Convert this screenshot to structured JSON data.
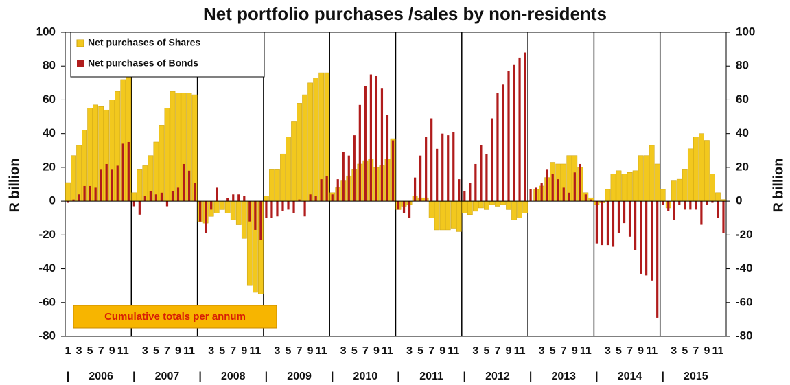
{
  "chart_data": {
    "type": "bar",
    "title": "Net portfolio purchases /sales by non-residents",
    "y_label": "R billion",
    "y2_label": "R billion",
    "annotation": "Cumulative totals per annum",
    "year_separator": "|",
    "years": [
      "2006",
      "2007",
      "2008",
      "2009",
      "2010",
      "2011",
      "2012",
      "2013",
      "2014",
      "2015"
    ],
    "categories": [
      "1",
      null,
      "3",
      null,
      "5",
      null,
      "7",
      null,
      "9",
      null,
      "11",
      null,
      null,
      null,
      "3",
      null,
      "5",
      null,
      "7",
      null,
      "9",
      null,
      "11",
      null,
      null,
      null,
      "3",
      null,
      "5",
      null,
      "7",
      null,
      "9",
      null,
      "11",
      null,
      null,
      null,
      "3",
      null,
      "5",
      null,
      "7",
      null,
      "9",
      null,
      "11",
      null,
      null,
      null,
      "3",
      null,
      "5",
      null,
      "7",
      null,
      "9",
      null,
      "11",
      null,
      null,
      null,
      "3",
      null,
      "5",
      null,
      "7",
      null,
      "9",
      null,
      "11",
      null,
      null,
      null,
      "3",
      null,
      "5",
      null,
      "7",
      null,
      "9",
      null,
      "11",
      null,
      null,
      null,
      "3",
      null,
      "5",
      null,
      "7",
      null,
      "9",
      null,
      "11",
      null,
      null,
      null,
      "3",
      null,
      "5",
      null,
      "7",
      null,
      "9",
      null,
      "11",
      null,
      null,
      null,
      "3",
      null,
      "5",
      null,
      "7",
      null,
      "9",
      null,
      "11",
      null
    ],
    "series": [
      {
        "name": "Net purchases of Shares",
        "color": "#f2c81e",
        "values": [
          11,
          27,
          33,
          42,
          55,
          57,
          56,
          54,
          60,
          65,
          72,
          74,
          5,
          19,
          21,
          27,
          35,
          45,
          55,
          65,
          64,
          64,
          64,
          63,
          -12,
          -13,
          -9,
          -7,
          -5,
          -7,
          -11,
          -14,
          -22,
          -50,
          -54,
          -55,
          3,
          19,
          19,
          28,
          38,
          47,
          58,
          63,
          70,
          73,
          76,
          76,
          5,
          8,
          12,
          15,
          19,
          22,
          24,
          25,
          20,
          21,
          25,
          37,
          -5,
          -3,
          -2,
          3,
          2,
          2,
          -10,
          -17,
          -17,
          -17,
          -16,
          -18,
          -7,
          -8,
          -6,
          -4,
          -5,
          -2,
          -3,
          -2,
          -5,
          -11,
          -10,
          -7,
          0,
          7,
          9,
          14,
          23,
          22,
          22,
          27,
          27,
          20,
          5,
          2,
          -2,
          -1,
          7,
          16,
          18,
          16,
          17,
          18,
          27,
          27,
          33,
          22,
          7,
          -4,
          12,
          13,
          19,
          31,
          38,
          40,
          36,
          16,
          5,
          1
        ]
      },
      {
        "name": "Net purchases of Bonds",
        "color": "#b01c1c",
        "values": [
          -1,
          1,
          4,
          9,
          9,
          8,
          19,
          22,
          19,
          21,
          34,
          35,
          -3,
          -8,
          3,
          6,
          4,
          5,
          -3,
          6,
          8,
          22,
          18,
          11,
          -12,
          -19,
          -5,
          8,
          0,
          2,
          4,
          4,
          3,
          -12,
          -17,
          -23,
          -10,
          -10,
          -9,
          -6,
          -5,
          -7,
          1,
          -9,
          4,
          3,
          13,
          15,
          4,
          13,
          29,
          27,
          39,
          57,
          68,
          75,
          74,
          67,
          51,
          36,
          -5,
          -7,
          -10,
          14,
          27,
          38,
          49,
          31,
          40,
          39,
          41,
          13,
          6,
          11,
          22,
          33,
          28,
          49,
          64,
          69,
          77,
          81,
          85,
          88,
          7,
          8,
          11,
          19,
          16,
          13,
          8,
          5,
          17,
          22,
          4,
          1,
          -25,
          -26,
          -26,
          -27,
          -19,
          -13,
          -21,
          -29,
          -43,
          -44,
          -47,
          -69,
          -2,
          -6,
          -11,
          -2,
          -5,
          -5,
          -5,
          -14,
          -2,
          -1,
          -10,
          -19
        ]
      }
    ],
    "ylim": [
      -80,
      100
    ],
    "yticks": [
      -80,
      -60,
      -40,
      -20,
      0,
      20,
      40,
      60,
      80,
      100
    ],
    "y2lim": [
      -80,
      100
    ],
    "y2ticks": [
      -80,
      -60,
      -40,
      -20,
      0,
      20,
      40,
      60,
      80,
      100
    ],
    "legend": "upper left"
  }
}
